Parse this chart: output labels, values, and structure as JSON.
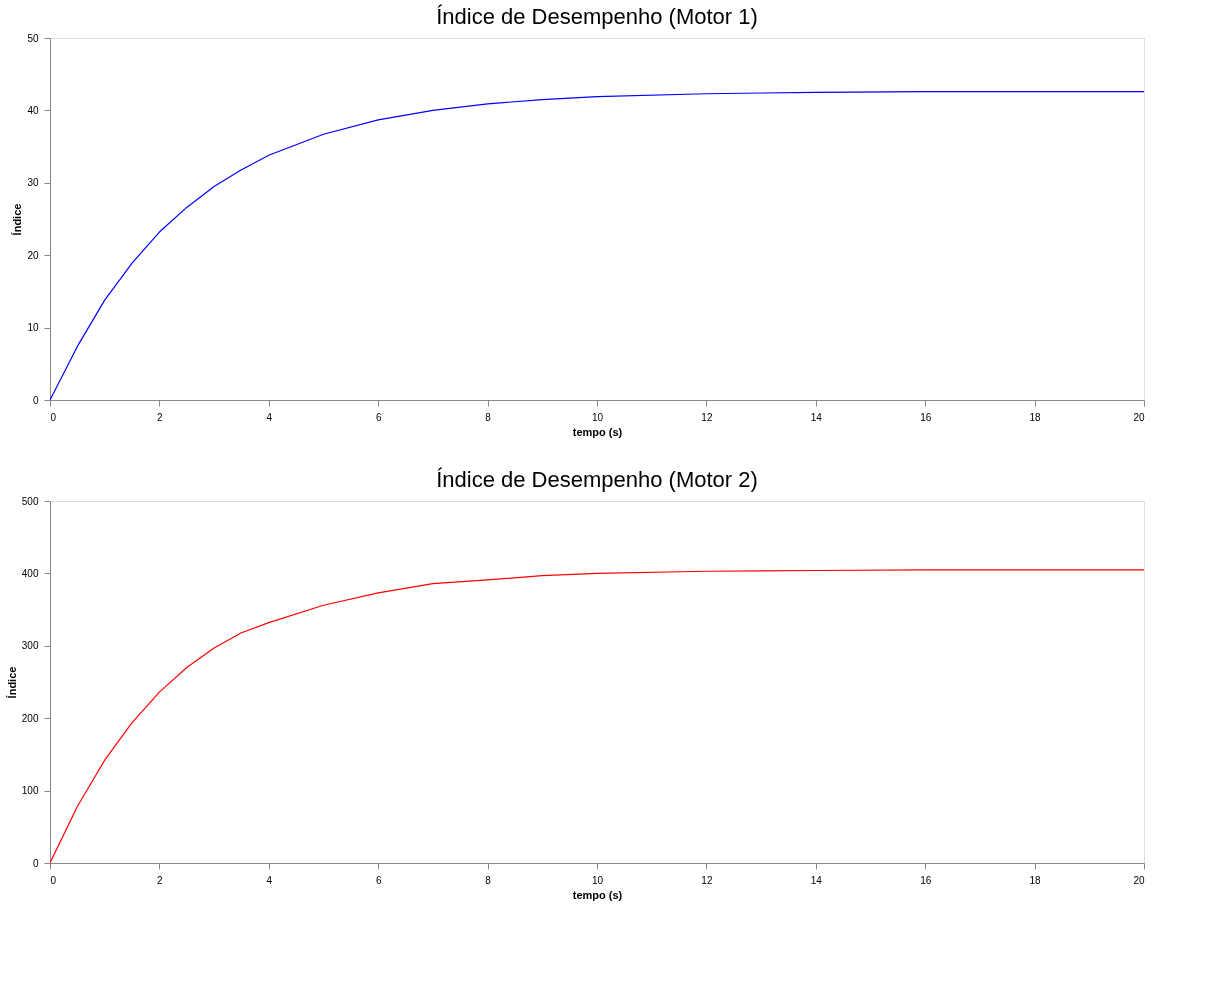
{
  "chart_data": [
    {
      "type": "line",
      "title": "Índice de Desempenho (Motor 1)",
      "xlabel": "tempo (s)",
      "ylabel": "Índice",
      "x": [
        0,
        0.5,
        1,
        1.5,
        2,
        2.5,
        3,
        3.5,
        4,
        5,
        6,
        7,
        8,
        9,
        10,
        12,
        14,
        16,
        18,
        20
      ],
      "series": [
        {
          "color": "#0000ff",
          "values": [
            0,
            7.4,
            13.8,
            18.9,
            23.2,
            26.6,
            29.5,
            31.8,
            33.8,
            36.7,
            38.7,
            40.0,
            40.9,
            41.5,
            41.9,
            42.3,
            42.5,
            42.6,
            42.6,
            42.6
          ]
        }
      ],
      "xlim": [
        0,
        20
      ],
      "xticks": [
        0,
        2,
        4,
        6,
        8,
        10,
        12,
        14,
        16,
        18,
        20
      ],
      "ylim": [
        0,
        50
      ],
      "yticks": [
        0,
        10,
        20,
        30,
        40,
        50
      ],
      "grid": false,
      "legend": false
    },
    {
      "type": "line",
      "title": "Índice de Desempenho (Motor 2)",
      "xlabel": "tempo (s)",
      "ylabel": "Índice",
      "x": [
        0,
        0.5,
        1,
        1.5,
        2,
        2.5,
        3,
        3.5,
        4,
        5,
        6,
        7,
        8,
        9,
        10,
        12,
        14,
        16,
        18,
        20
      ],
      "series": [
        {
          "color": "#ff0000",
          "values": [
            0,
            78,
            142,
            194,
            236,
            270,
            297,
            318,
            332,
            356,
            373,
            386,
            391,
            397,
            400,
            403,
            404,
            405,
            405,
            405
          ]
        }
      ],
      "xlim": [
        0,
        20
      ],
      "xticks": [
        0,
        2,
        4,
        6,
        8,
        10,
        12,
        14,
        16,
        18,
        20
      ],
      "ylim": [
        0,
        500
      ],
      "yticks": [
        0,
        100,
        200,
        300,
        400,
        500
      ],
      "grid": false,
      "legend": false
    }
  ]
}
